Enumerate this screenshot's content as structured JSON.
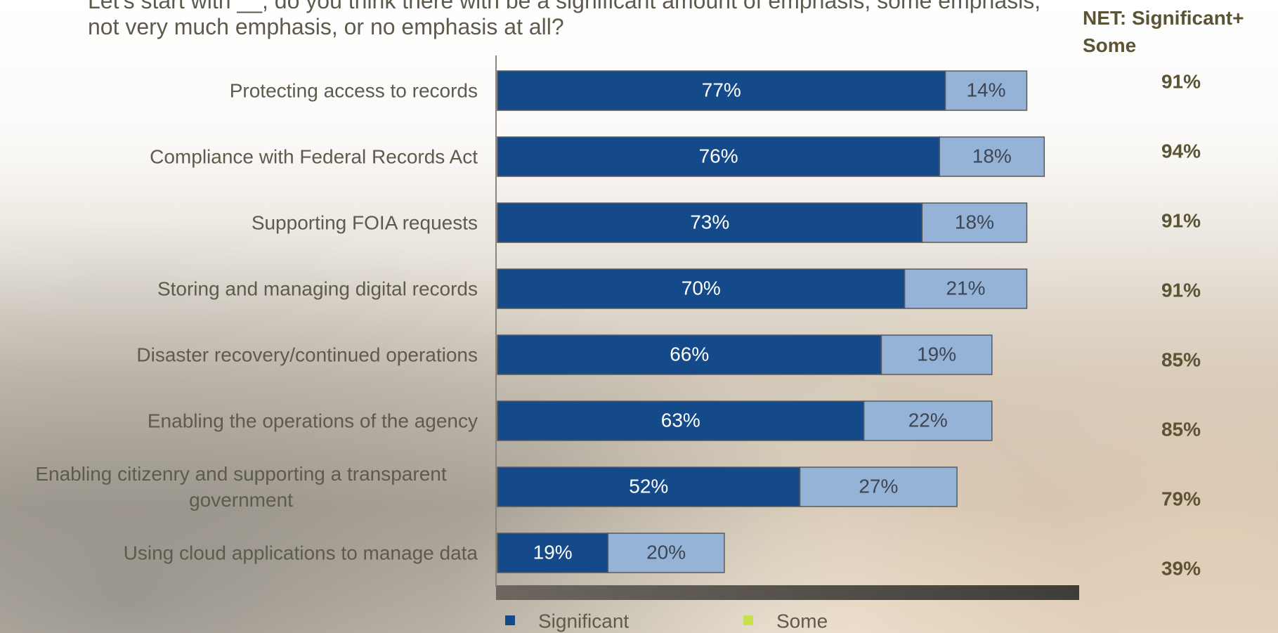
{
  "chart_data": {
    "type": "stacked_barh",
    "title": "Let's start with __, do you think there with be a significant amount of emphasis, some emphasis, not very much emphasis, or no emphasis at all?",
    "categories": [
      "Protecting access to records",
      "Compliance with Federal Records Act",
      "Supporting FOIA requests",
      "Storing and managing digital records",
      "Disaster recovery/continued operations",
      "Enabling the operations of the agency",
      "Enabling citizenry and supporting a transparent government",
      "Using cloud applications to manage data"
    ],
    "series": [
      {
        "name": "Significant",
        "color": "#154a8a",
        "legend_color": "#154a8a",
        "label_color": "#ffffff",
        "values": [
          77,
          76,
          73,
          70,
          66,
          63,
          52,
          19
        ],
        "value_labels": [
          "77%",
          "76%",
          "73%",
          "70%",
          "66%",
          "63%",
          "52%",
          "19%"
        ]
      },
      {
        "name": "Some",
        "color": "#95b3d7",
        "legend_color": "#c8e04c",
        "label_color": "#3d4654",
        "values": [
          14,
          18,
          18,
          21,
          19,
          22,
          27,
          20
        ],
        "value_labels": [
          "14%",
          "18%",
          "18%",
          "21%",
          "19%",
          "22%",
          "27%",
          "20%"
        ]
      }
    ],
    "xlim": [
      0,
      100
    ],
    "net": {
      "header": "NET: Significant+ Some",
      "values": [
        91,
        94,
        91,
        91,
        85,
        85,
        79,
        39
      ],
      "value_labels": [
        "91%",
        "94%",
        "91%",
        "91%",
        "85%",
        "85%",
        "79%",
        "39%"
      ]
    }
  }
}
